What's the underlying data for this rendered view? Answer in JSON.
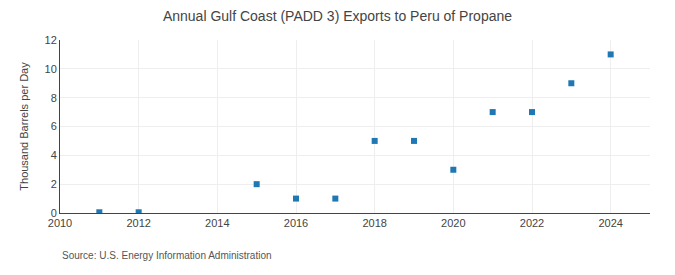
{
  "chart_data": {
    "type": "scatter",
    "title": "Annual Gulf Coast (PADD 3) Exports to Peru of Propane",
    "ylabel": "Thousand Barrels per Day",
    "annotations": [
      "Source: U.S. Energy Information Administration"
    ],
    "x": [
      2011,
      2012,
      2015,
      2016,
      2017,
      2018,
      2019,
      2020,
      2021,
      2022,
      2023,
      2024
    ],
    "values": [
      0.05,
      0.05,
      2.0,
      1.0,
      1.0,
      5.0,
      5.0,
      3.0,
      7.0,
      7.0,
      9.0,
      11.0
    ],
    "xlim": [
      2010,
      2025
    ],
    "xticks": [
      2010,
      2012,
      2014,
      2016,
      2018,
      2020,
      2022,
      2024
    ],
    "ylim": [
      0,
      12
    ],
    "yticks": [
      0,
      2,
      4,
      6,
      8,
      10,
      12
    ],
    "grid": true,
    "marker": "square"
  }
}
